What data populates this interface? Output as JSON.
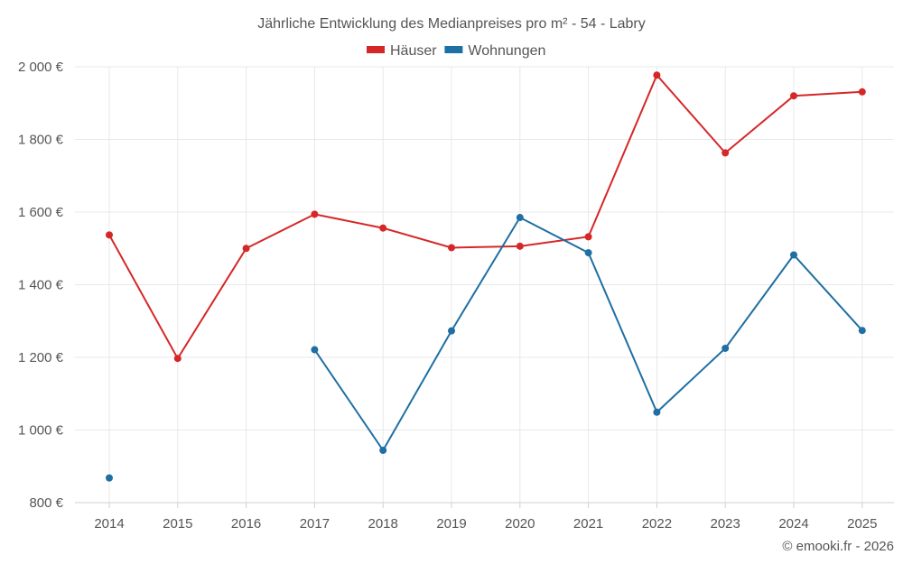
{
  "chart_data": {
    "type": "line",
    "title": "Jährliche Entwicklung des Medianpreises pro m² - 54 - Labry",
    "categories": [
      "2014",
      "2015",
      "2016",
      "2017",
      "2018",
      "2019",
      "2020",
      "2021",
      "2022",
      "2023",
      "2024",
      "2025"
    ],
    "ylim": [
      800,
      2000
    ],
    "yticks": [
      800,
      1000,
      1200,
      1400,
      1600,
      1800,
      2000
    ],
    "ytick_labels": [
      "800 €",
      "1 000 €",
      "1 200 €",
      "1 400 €",
      "1 600 €",
      "1 800 €",
      "2 000 €"
    ],
    "grid": true,
    "legend_position": "top",
    "series": [
      {
        "name": "Häuser",
        "color": "#d62728",
        "values": [
          1537,
          1197,
          1500,
          1594,
          1556,
          1502,
          1506,
          1532,
          1977,
          1763,
          1920,
          1931
        ]
      },
      {
        "name": "Wohnungen",
        "color": "#1f6fa3",
        "values": [
          868,
          null,
          null,
          1221,
          944,
          1273,
          1585,
          1488,
          1049,
          1225,
          1482,
          1274
        ]
      }
    ]
  },
  "credit": "© emooki.fr - 2026"
}
